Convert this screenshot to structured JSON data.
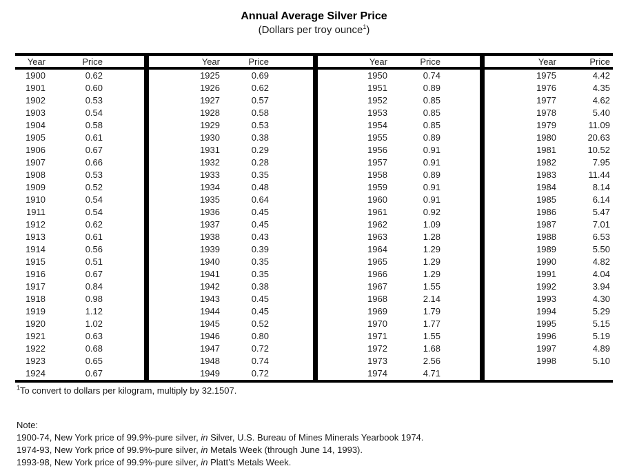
{
  "title": "Annual Average Silver Price",
  "subtitle": {
    "prefix": "(Dollars per troy ounce",
    "sup": "1",
    "suffix": ")"
  },
  "table": {
    "year_header": "Year",
    "price_header": "Price",
    "groups": [
      {
        "rows": [
          [
            "1900",
            "0.62"
          ],
          [
            "1901",
            "0.60"
          ],
          [
            "1902",
            "0.53"
          ],
          [
            "1903",
            "0.54"
          ],
          [
            "1904",
            "0.58"
          ],
          [
            "1905",
            "0.61"
          ],
          [
            "1906",
            "0.67"
          ],
          [
            "1907",
            "0.66"
          ],
          [
            "1908",
            "0.53"
          ],
          [
            "1909",
            "0.52"
          ],
          [
            "1910",
            "0.54"
          ],
          [
            "1911",
            "0.54"
          ],
          [
            "1912",
            "0.62"
          ],
          [
            "1913",
            "0.61"
          ],
          [
            "1914",
            "0.56"
          ],
          [
            "1915",
            "0.51"
          ],
          [
            "1916",
            "0.67"
          ],
          [
            "1917",
            "0.84"
          ],
          [
            "1918",
            "0.98"
          ],
          [
            "1919",
            "1.12"
          ],
          [
            "1920",
            "1.02"
          ],
          [
            "1921",
            "0.63"
          ],
          [
            "1922",
            "0.68"
          ],
          [
            "1923",
            "0.65"
          ],
          [
            "1924",
            "0.67"
          ]
        ]
      },
      {
        "rows": [
          [
            "1925",
            "0.69"
          ],
          [
            "1926",
            "0.62"
          ],
          [
            "1927",
            "0.57"
          ],
          [
            "1928",
            "0.58"
          ],
          [
            "1929",
            "0.53"
          ],
          [
            "1930",
            "0.38"
          ],
          [
            "1931",
            "0.29"
          ],
          [
            "1932",
            "0.28"
          ],
          [
            "1933",
            "0.35"
          ],
          [
            "1934",
            "0.48"
          ],
          [
            "1935",
            "0.64"
          ],
          [
            "1936",
            "0.45"
          ],
          [
            "1937",
            "0.45"
          ],
          [
            "1938",
            "0.43"
          ],
          [
            "1939",
            "0.39"
          ],
          [
            "1940",
            "0.35"
          ],
          [
            "1941",
            "0.35"
          ],
          [
            "1942",
            "0.38"
          ],
          [
            "1943",
            "0.45"
          ],
          [
            "1944",
            "0.45"
          ],
          [
            "1945",
            "0.52"
          ],
          [
            "1946",
            "0.80"
          ],
          [
            "1947",
            "0.72"
          ],
          [
            "1948",
            "0.74"
          ],
          [
            "1949",
            "0.72"
          ]
        ]
      },
      {
        "rows": [
          [
            "1950",
            "0.74"
          ],
          [
            "1951",
            "0.89"
          ],
          [
            "1952",
            "0.85"
          ],
          [
            "1953",
            "0.85"
          ],
          [
            "1954",
            "0.85"
          ],
          [
            "1955",
            "0.89"
          ],
          [
            "1956",
            "0.91"
          ],
          [
            "1957",
            "0.91"
          ],
          [
            "1958",
            "0.89"
          ],
          [
            "1959",
            "0.91"
          ],
          [
            "1960",
            "0.91"
          ],
          [
            "1961",
            "0.92"
          ],
          [
            "1962",
            "1.09"
          ],
          [
            "1963",
            "1.28"
          ],
          [
            "1964",
            "1.29"
          ],
          [
            "1965",
            "1.29"
          ],
          [
            "1966",
            "1.29"
          ],
          [
            "1967",
            "1.55"
          ],
          [
            "1968",
            "2.14"
          ],
          [
            "1969",
            "1.79"
          ],
          [
            "1970",
            "1.77"
          ],
          [
            "1971",
            "1.55"
          ],
          [
            "1972",
            "1.68"
          ],
          [
            "1973",
            "2.56"
          ],
          [
            "1974",
            "4.71"
          ]
        ]
      },
      {
        "rows": [
          [
            "1975",
            "4.42"
          ],
          [
            "1976",
            "4.35"
          ],
          [
            "1977",
            "4.62"
          ],
          [
            "1978",
            "5.40"
          ],
          [
            "1979",
            "11.09"
          ],
          [
            "1980",
            "20.63"
          ],
          [
            "1981",
            "10.52"
          ],
          [
            "1982",
            "7.95"
          ],
          [
            "1983",
            "11.44"
          ],
          [
            "1984",
            "8.14"
          ],
          [
            "1985",
            "6.14"
          ],
          [
            "1986",
            "5.47"
          ],
          [
            "1987",
            "7.01"
          ],
          [
            "1988",
            "6.53"
          ],
          [
            "1989",
            "5.50"
          ],
          [
            "1990",
            "4.82"
          ],
          [
            "1991",
            "4.04"
          ],
          [
            "1992",
            "3.94"
          ],
          [
            "1993",
            "4.30"
          ],
          [
            "1994",
            "5.29"
          ],
          [
            "1995",
            "5.15"
          ],
          [
            "1996",
            "5.19"
          ],
          [
            "1997",
            "4.89"
          ],
          [
            "1998",
            "5.10"
          ]
        ]
      }
    ]
  },
  "footnote": {
    "sup": "1",
    "text": "To convert to dollars per kilogram, multiply by 32.1507."
  },
  "notes": {
    "label": "Note:",
    "lines": [
      {
        "prefix": "1900-74, New York price of 99.9%-pure silver, ",
        "italic": "in",
        "suffix": " Silver, U.S. Bureau of Mines Minerals Yearbook 1974."
      },
      {
        "prefix": "1974-93, New York price of 99.9%-pure silver, ",
        "italic": "in",
        "suffix": " Metals Week (through June 14, 1993)."
      },
      {
        "prefix": "1993-98, New York price of 99.9%-pure silver, ",
        "italic": "in",
        "suffix": " Platt’s Metals Week."
      }
    ]
  }
}
